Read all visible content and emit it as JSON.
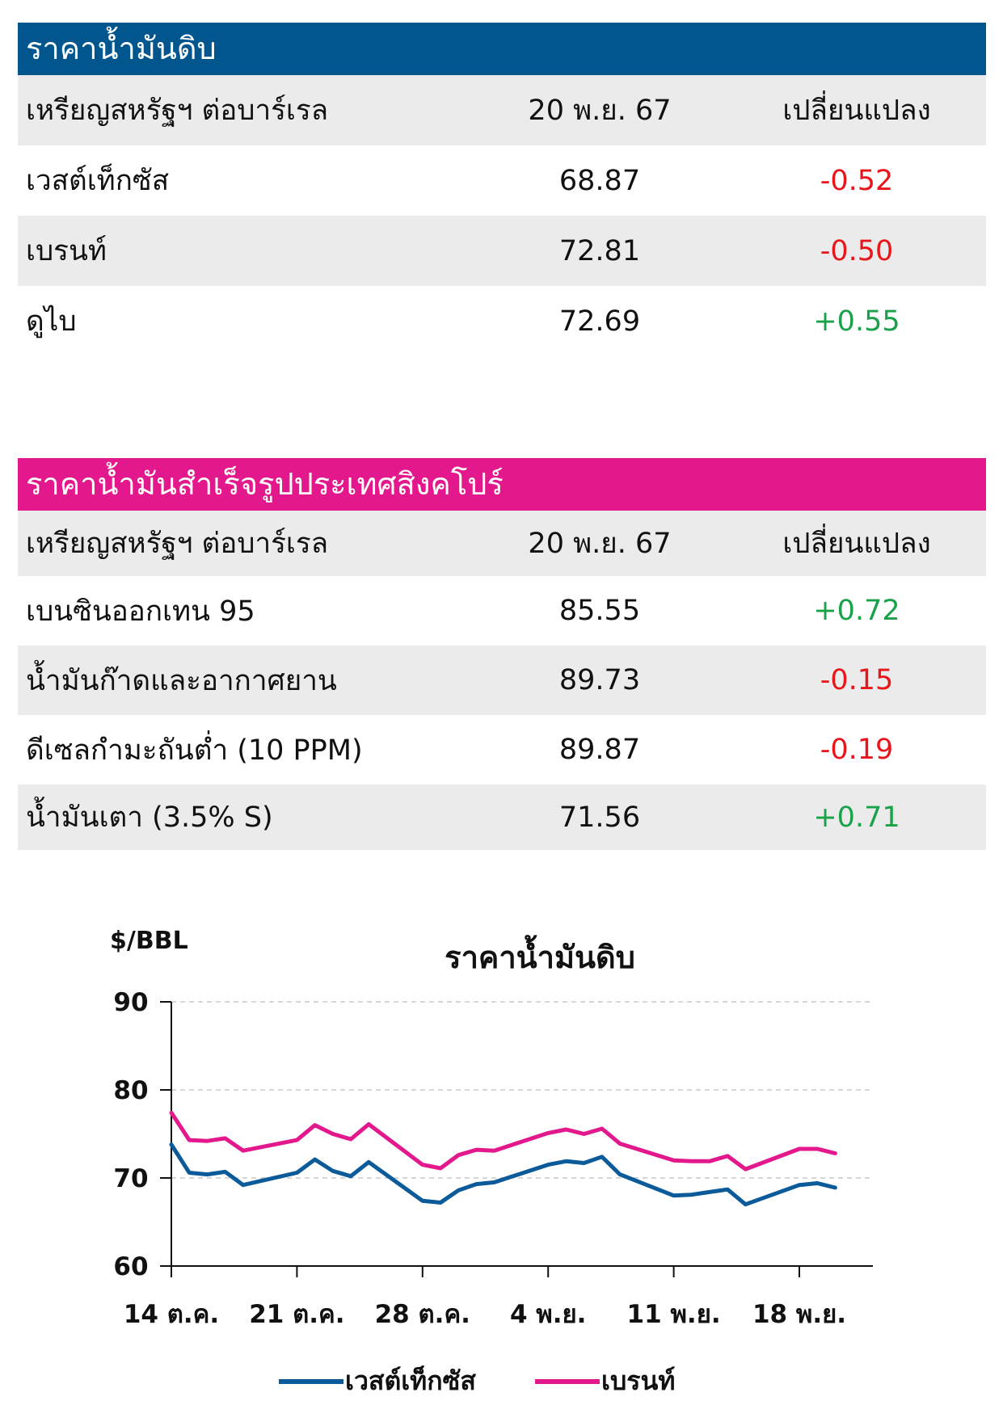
{
  "colors": {
    "crude_band": "#02568e",
    "refined_band": "#e3188d",
    "row_shade": "#ebebeb",
    "negative": "#e8161b",
    "positive": "#19a24a",
    "wti_line": "#0b5a99",
    "brent_line": "#e3188d"
  },
  "crude": {
    "title": "ราคาน้ำมันดิบ",
    "header": {
      "col1": "เหรียญสหรัฐฯ ต่อบาร์เรล",
      "col2": "20 พ.ย. 67",
      "col3": "เปลี่ยนแปลง"
    },
    "rows": [
      {
        "name": "เวสต์เท็กซัส",
        "price": "68.87",
        "change": "-0.52",
        "dir": "neg"
      },
      {
        "name": "เบรนท์",
        "price": "72.81",
        "change": "-0.50",
        "dir": "neg"
      },
      {
        "name": "ดูไบ",
        "price": "72.69",
        "change": "+0.55",
        "dir": "pos"
      }
    ]
  },
  "refined": {
    "title": "ราคาน้ำมันสำเร็จรูปประเทศสิงคโปร์",
    "header": {
      "col1": "เหรียญสหรัฐฯ ต่อบาร์เรล",
      "col2": "20 พ.ย. 67",
      "col3": "เปลี่ยนแปลง"
    },
    "rows": [
      {
        "name": "เบนซินออกเทน 95",
        "price": "85.55",
        "change": "+0.72",
        "dir": "pos"
      },
      {
        "name": "น้ำมันก๊าดและอากาศยาน",
        "price": "89.73",
        "change": "-0.15",
        "dir": "neg"
      },
      {
        "name": "ดีเซลกำมะถันต่ำ (10 PPM)",
        "price": "89.87",
        "change": "-0.19",
        "dir": "neg"
      },
      {
        "name": "น้ำมันเตา (3.5% S)",
        "price": "71.56",
        "change": "+0.71",
        "dir": "pos"
      }
    ]
  },
  "chart_data": {
    "type": "line",
    "title": "ราคาน้ำมันดิบ",
    "ylabel": "$/BBL",
    "xlabel": "",
    "ylim": [
      60,
      90
    ],
    "yticks": [
      60,
      70,
      80,
      90
    ],
    "grid": true,
    "legend": "bottom",
    "x": [
      "2024-10-14",
      "2024-10-15",
      "2024-10-16",
      "2024-10-17",
      "2024-10-18",
      "2024-10-21",
      "2024-10-22",
      "2024-10-23",
      "2024-10-24",
      "2024-10-25",
      "2024-10-28",
      "2024-10-29",
      "2024-10-30",
      "2024-10-31",
      "2024-11-01",
      "2024-11-04",
      "2024-11-05",
      "2024-11-06",
      "2024-11-07",
      "2024-11-08",
      "2024-11-11",
      "2024-11-12",
      "2024-11-13",
      "2024-11-14",
      "2024-11-15",
      "2024-11-18",
      "2024-11-19",
      "2024-11-20"
    ],
    "xticks": [
      {
        "date": "2024-10-14",
        "label": "14 ต.ค."
      },
      {
        "date": "2024-10-21",
        "label": "21 ต.ค."
      },
      {
        "date": "2024-10-28",
        "label": "28 ต.ค."
      },
      {
        "date": "2024-11-04",
        "label": "4 พ.ย."
      },
      {
        "date": "2024-11-11",
        "label": "11 พ.ย."
      },
      {
        "date": "2024-11-18",
        "label": "18 พ.ย."
      }
    ],
    "series": [
      {
        "name": "เวสต์เท็กซัส",
        "color": "#0b5a99",
        "values": [
          73.8,
          70.6,
          70.4,
          70.7,
          69.2,
          70.6,
          72.1,
          70.8,
          70.2,
          71.8,
          67.4,
          67.2,
          68.6,
          69.3,
          69.5,
          71.5,
          71.9,
          71.7,
          72.4,
          70.4,
          68.0,
          68.1,
          68.4,
          68.7,
          67.0,
          69.2,
          69.4,
          68.9
        ]
      },
      {
        "name": "เบรนท์",
        "color": "#e3188d",
        "values": [
          77.4,
          74.3,
          74.2,
          74.5,
          73.1,
          74.3,
          76.0,
          75.0,
          74.4,
          76.1,
          71.5,
          71.1,
          72.6,
          73.2,
          73.1,
          75.1,
          75.5,
          75.0,
          75.6,
          73.9,
          72.0,
          71.9,
          71.9,
          72.5,
          71.0,
          73.3,
          73.3,
          72.8
        ]
      }
    ]
  }
}
